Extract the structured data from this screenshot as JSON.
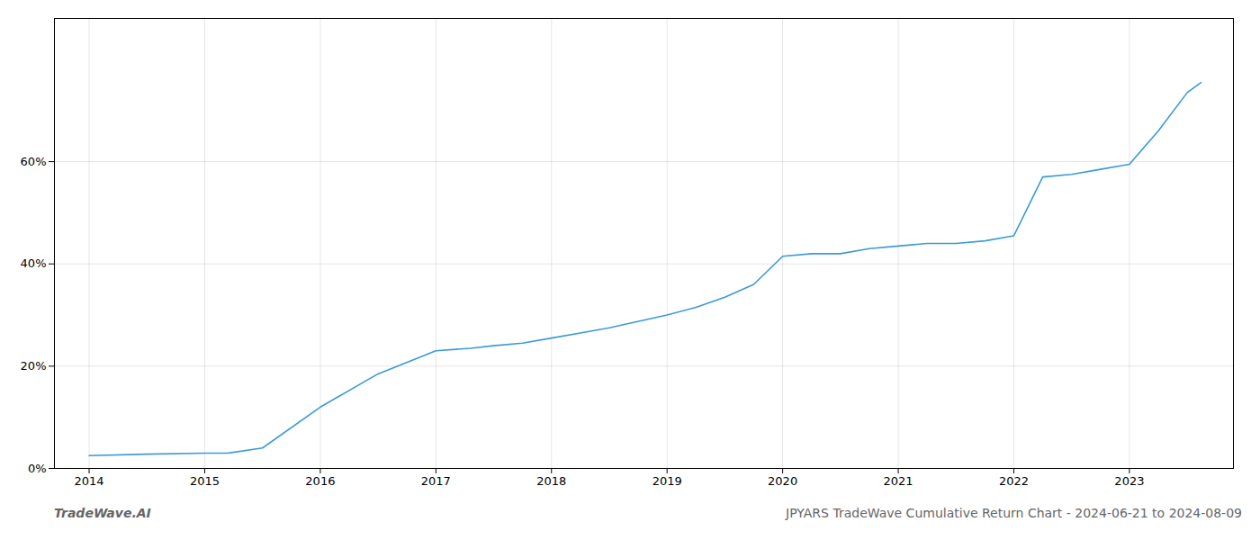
{
  "chart_data": {
    "type": "line",
    "x": [
      2014.0,
      2014.5,
      2015.0,
      2015.2,
      2015.5,
      2016.0,
      2016.5,
      2017.0,
      2017.3,
      2017.5,
      2017.75,
      2018.0,
      2018.25,
      2018.5,
      2019.0,
      2019.25,
      2019.5,
      2019.75,
      2020.0,
      2020.25,
      2020.5,
      2020.75,
      2021.0,
      2021.25,
      2021.5,
      2021.75,
      2022.0,
      2022.25,
      2022.5,
      2022.75,
      2023.0,
      2023.25,
      2023.5,
      2023.62
    ],
    "values": [
      0.025,
      0.028,
      0.03,
      0.03,
      0.04,
      0.12,
      0.185,
      0.23,
      0.235,
      0.24,
      0.245,
      0.255,
      0.265,
      0.275,
      0.3,
      0.315,
      0.335,
      0.36,
      0.415,
      0.42,
      0.42,
      0.43,
      0.435,
      0.44,
      0.44,
      0.445,
      0.455,
      0.57,
      0.575,
      0.585,
      0.595,
      0.66,
      0.735,
      0.755
    ],
    "color": "#3a9ad9",
    "xlim": [
      2013.7,
      2023.9
    ],
    "ylim": [
      0.0,
      0.88
    ],
    "xticks": [
      2014,
      2015,
      2016,
      2017,
      2018,
      2019,
      2020,
      2021,
      2022,
      2023
    ],
    "yticks": [
      {
        "value": 0.0,
        "label": "0%"
      },
      {
        "value": 0.2,
        "label": "20%"
      },
      {
        "value": 0.4,
        "label": "40%"
      },
      {
        "value": 0.6,
        "label": "60%"
      }
    ],
    "grid": true,
    "annotations": [
      "TradeWave.AI",
      "JPYARS TradeWave Cumulative Return Chart - 2024-06-21 to 2024-08-09"
    ]
  }
}
